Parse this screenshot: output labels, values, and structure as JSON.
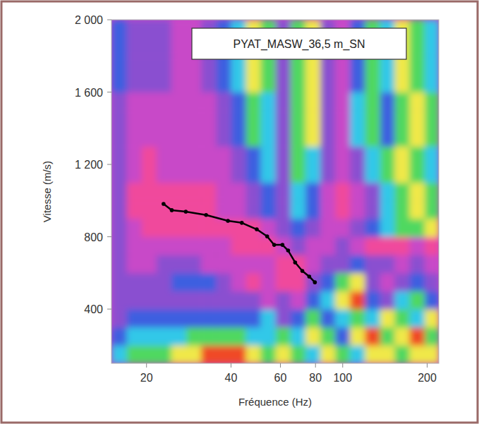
{
  "chart_data": {
    "type": "heatmap",
    "title": "PYAT_MASW_36,5 m_SN",
    "x_label": "Fréquence (Hz)",
    "y_label": "Vitesse (m/s)",
    "log": "x",
    "xlim": [
      15,
      220
    ],
    "ylim": [
      100,
      2000
    ],
    "xticks": [
      20,
      40,
      60,
      80,
      100,
      200
    ],
    "yticks": [
      {
        "value": 400,
        "label": "400"
      },
      {
        "value": 800,
        "label": "800"
      },
      {
        "value": 1200,
        "label": "1 200"
      },
      {
        "value": 1600,
        "label": "1 600"
      },
      {
        "value": 2000,
        "label": "2 000"
      }
    ],
    "heatmap": {
      "x_edges": [
        15,
        17,
        19.2,
        21.7,
        24.5,
        27.7,
        31.3,
        35.4,
        40,
        45.2,
        51,
        57.7,
        65.2,
        73.7,
        83.3,
        94,
        106,
        120,
        136,
        153,
        173,
        196,
        220
      ],
      "y_edges": [
        100,
        200,
        300,
        400,
        500,
        600,
        700,
        800,
        900,
        1000,
        1100,
        1200,
        1300,
        1400,
        1500,
        1600,
        1700,
        1800,
        1900,
        2000
      ],
      "cells": [
        [
          0.3,
          0.45,
          0.45,
          0.45,
          0.6,
          0.6,
          0.72,
          0.72,
          0.72,
          0.6,
          0.45,
          0.6,
          0.45,
          0.3,
          0.6,
          0.45,
          0.3,
          0.6,
          0.6,
          0.45,
          0.6,
          0.6
        ],
        [
          0.15,
          0.3,
          0.3,
          0.3,
          0.3,
          0.45,
          0.45,
          0.45,
          0.45,
          0.3,
          0.3,
          0.45,
          0.3,
          0.6,
          0.45,
          0.15,
          0.6,
          0.72,
          0.45,
          0.6,
          0.72,
          0.45
        ],
        [
          0,
          0.15,
          0.15,
          0.15,
          0.15,
          0.15,
          0.15,
          0.15,
          0.15,
          0.15,
          0.3,
          0,
          0.15,
          0.45,
          0.15,
          0.3,
          0.45,
          0.3,
          0.6,
          0.45,
          0.3,
          0.6
        ],
        [
          0,
          0,
          0,
          0,
          0,
          0,
          0,
          0,
          0,
          0,
          0.85,
          0,
          0.85,
          0.15,
          0.3,
          0.6,
          0.72,
          0.15,
          0,
          0.3,
          0.45,
          0.15
        ],
        [
          0,
          0,
          0,
          0,
          0.15,
          0.15,
          0.15,
          0,
          0.85,
          1,
          0.85,
          1,
          1,
          0,
          0.15,
          0.45,
          0.6,
          0,
          0.85,
          0,
          0.15,
          0
        ],
        [
          0,
          0.85,
          0.85,
          0,
          0,
          0,
          0.85,
          0.85,
          0.85,
          0.85,
          0.85,
          1,
          1,
          0.85,
          0,
          0,
          0.15,
          0,
          0,
          0.85,
          0,
          0.85
        ],
        [
          0,
          0.85,
          0.85,
          0.85,
          0.85,
          0.85,
          0.85,
          0.85,
          1,
          1,
          1,
          0.85,
          0,
          0.85,
          0.85,
          0,
          0.85,
          1,
          1,
          1,
          0.85,
          1
        ],
        [
          0,
          0.85,
          1,
          1,
          1,
          1,
          1,
          1,
          1,
          1,
          0.85,
          0,
          0.15,
          0,
          0.85,
          0.85,
          0,
          0.15,
          0.3,
          0.45,
          0.45,
          0.6
        ],
        [
          0,
          1,
          1,
          1,
          1,
          1,
          1,
          0.85,
          0.85,
          0,
          0.15,
          0,
          0.3,
          0.15,
          0.85,
          1,
          0.85,
          0,
          0.3,
          0.45,
          0.6,
          0.45
        ],
        [
          0,
          1,
          1,
          1,
          1,
          1,
          1,
          0.85,
          0.85,
          0,
          0.15,
          0,
          0.3,
          0.15,
          0.85,
          1,
          0.85,
          0,
          0.3,
          0.45,
          0.6,
          0.45
        ],
        [
          0,
          0.85,
          1,
          0.85,
          0.85,
          0.85,
          0.85,
          0.85,
          0,
          0.15,
          0.3,
          0,
          0.45,
          0.3,
          0,
          0.85,
          0,
          0.3,
          0.45,
          0.6,
          0.45,
          0.3
        ],
        [
          0,
          0.85,
          1,
          0.85,
          0.85,
          0.85,
          0.85,
          0.85,
          0,
          0.15,
          0.3,
          0,
          0.45,
          0.3,
          0,
          0.85,
          0,
          0.3,
          0.45,
          0.6,
          0.45,
          0.3
        ],
        [
          0,
          0.85,
          0.85,
          0.85,
          0.85,
          0.85,
          0.85,
          0,
          0.15,
          0.45,
          0.3,
          0,
          0.45,
          0.6,
          0,
          0.85,
          0.3,
          0.45,
          0.15,
          0.45,
          0.6,
          0.45
        ],
        [
          0,
          0.85,
          0.85,
          0.85,
          0.85,
          0.85,
          0.85,
          0,
          0.15,
          0.45,
          0.3,
          0,
          0.45,
          0.6,
          0,
          0.85,
          0.3,
          0.45,
          0.15,
          0.45,
          0.6,
          0.45
        ],
        [
          0,
          0.85,
          0.85,
          0.85,
          0.85,
          0.85,
          0.85,
          0,
          0.15,
          0.45,
          0.3,
          0,
          0.45,
          0.6,
          0,
          0.85,
          0.3,
          0.45,
          0.15,
          0.45,
          0.6,
          0.45
        ],
        [
          0.15,
          0,
          0,
          0,
          0.85,
          0.85,
          0,
          0.15,
          0.3,
          0.6,
          0.45,
          0,
          0.45,
          0.6,
          0,
          0.85,
          0.15,
          0.45,
          0.3,
          0.6,
          0.45,
          0.3
        ],
        [
          0.15,
          0,
          0,
          0,
          0.85,
          0.85,
          0,
          0.15,
          0.3,
          0.6,
          0.45,
          0,
          0.45,
          0.6,
          0,
          0.85,
          0.15,
          0.45,
          0.3,
          0.6,
          0.45,
          0.3
        ],
        [
          0.15,
          0,
          0,
          0,
          0.85,
          0.85,
          0,
          0.15,
          0.3,
          0.6,
          0.45,
          0,
          0.45,
          0.6,
          0,
          0.85,
          0.15,
          0.45,
          0.3,
          0.6,
          0.45,
          0.3
        ],
        [
          0.15,
          0,
          0,
          0,
          0.85,
          0.85,
          0,
          0.15,
          0.3,
          0.6,
          0.45,
          0,
          0.45,
          0.6,
          0,
          0.85,
          0.15,
          0.45,
          0.3,
          0.6,
          0.45,
          0.3
        ]
      ]
    },
    "series": [
      {
        "type": "line",
        "color": "#000000",
        "marker": "circle",
        "x": [
          23.0,
          24.6,
          27.6,
          32.6,
          39.0,
          43.7,
          49.4,
          53.8,
          57.0,
          61.0,
          63.9,
          67.7,
          71.8,
          76.0,
          79.6
        ],
        "values": [
          982,
          947,
          939,
          920,
          888,
          877,
          841,
          802,
          755,
          755,
          724,
          658,
          611,
          580,
          548
        ]
      }
    ]
  }
}
